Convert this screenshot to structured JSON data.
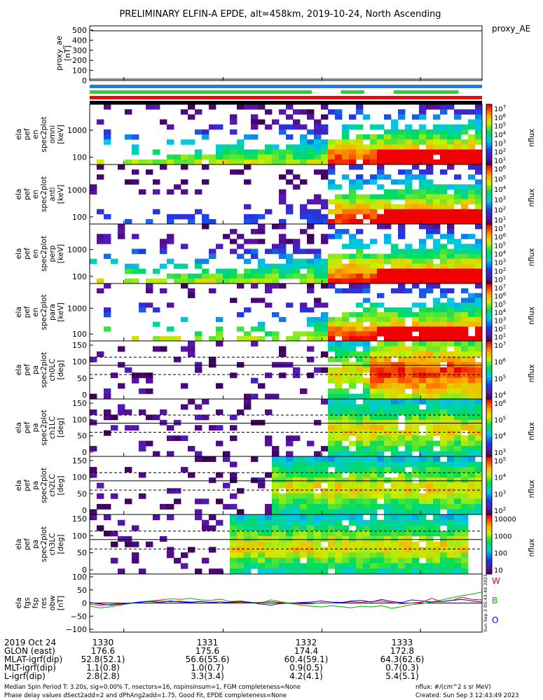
{
  "title": "PRELIMINARY ELFIN-A EPDE, alt=458km, 2019-10-24, North Ascending",
  "proxy_panel": {
    "ylabel_lines": [
      "proxy_ae",
      "[nT]"
    ],
    "right_label": "proxy_AE",
    "yticks": [
      "500",
      "400",
      "300",
      "200",
      "100",
      "0"
    ],
    "line_color": "#000000"
  },
  "flag_bars": {
    "colors": [
      "#1f7fe0",
      "#2ad62a",
      "#ff0000",
      "#000000"
    ]
  },
  "spectrogram_panels": [
    {
      "ylabel_lines": [
        "ela",
        "pef",
        "en",
        "spec2plot",
        "omni",
        "[keV]"
      ],
      "yticks": [
        "1000",
        "100"
      ],
      "cbar_ticks": [
        "10^7",
        "10^6",
        "10^5",
        "10^4",
        "10^3",
        "10^2",
        "10^1"
      ],
      "cbar_label": "nflux"
    },
    {
      "ylabel_lines": [
        "ela",
        "pef",
        "en",
        "spec2plot",
        "anti",
        "[keV]"
      ],
      "yticks": [
        "1000",
        "100"
      ],
      "cbar_ticks": [
        "10^6",
        "10^5",
        "10^4",
        "10^3",
        "10^2",
        "10^1"
      ],
      "cbar_label": "nflux"
    },
    {
      "ylabel_lines": [
        "ela",
        "pef",
        "en",
        "spec2plot",
        "perp",
        "[keV]"
      ],
      "yticks": [
        "1000",
        "100"
      ],
      "cbar_ticks": [
        "10^7",
        "10^6",
        "10^5",
        "10^4",
        "10^3",
        "10^2",
        "10^1"
      ],
      "cbar_label": "nflux"
    },
    {
      "ylabel_lines": [
        "ela",
        "pef",
        "en",
        "spec2plot",
        "para",
        "[keV]"
      ],
      "yticks": [
        "1000",
        "100"
      ],
      "cbar_ticks": [
        "10^7",
        "10^6",
        "10^5",
        "10^4",
        "10^3",
        "10^2",
        "10^1"
      ],
      "cbar_label": "nflux"
    },
    {
      "ylabel_lines": [
        "ela",
        "pef",
        "pa",
        "spec2plot",
        "ch0LC",
        "[deg]"
      ],
      "yticks": [
        "150",
        "100",
        "50",
        "0"
      ],
      "cbar_ticks": [
        "10^7",
        "10^6",
        "10^5",
        "10^4"
      ],
      "cbar_label": "nflux"
    },
    {
      "ylabel_lines": [
        "ela",
        "pef",
        "pa",
        "spec2plot",
        "ch1LC",
        "[deg]"
      ],
      "yticks": [
        "150",
        "100",
        "50",
        "0"
      ],
      "cbar_ticks": [
        "10^6",
        "10^5",
        "10^4",
        "10^3"
      ],
      "cbar_label": "nflux"
    },
    {
      "ylabel_lines": [
        "ela",
        "pef",
        "pa",
        "spec2plot",
        "ch2LC",
        "[deg]"
      ],
      "yticks": [
        "150",
        "100",
        "50",
        "0"
      ],
      "cbar_ticks": [
        "10^5",
        "10^4",
        "10^3",
        "10^2"
      ],
      "cbar_label": "nflux"
    },
    {
      "ylabel_lines": [
        "ela",
        "pef",
        "pa",
        "spec2plot",
        "ch3LC",
        "[deg]"
      ],
      "yticks": [
        "150",
        "100",
        "50",
        "0"
      ],
      "cbar_ticks": [
        "10000",
        "1000",
        "100",
        "10"
      ],
      "cbar_label": "nflux"
    }
  ],
  "field_panel": {
    "ylabel_lines": [
      "ela",
      "fgs",
      "fsp",
      "res",
      "obw",
      "[nT]"
    ],
    "yticks": [
      "100",
      "50",
      "0",
      "−50",
      "−100"
    ],
    "side_labels": [
      {
        "text": "W",
        "color": "#ff0000"
      },
      {
        "text": "B",
        "color": "#00b000"
      },
      {
        "text": "O",
        "color": "#0000ff"
      }
    ],
    "vertical_stamp": "Sun Sep  3 05:43:48 2023"
  },
  "chart_data": {
    "type": "line",
    "title": "PRELIMINARY ELFIN-A EPDE, alt=458km, 2019-10-24, North Ascending",
    "x_range_hhmm": [
      "13:29.5",
      "13:34.0"
    ],
    "proxy_ae": {
      "ylim": [
        0,
        500
      ],
      "value": 0
    },
    "field_ylim": [
      -100,
      100
    ],
    "series": [
      {
        "name": "W",
        "color": "#ff0000",
        "values": [
          -5,
          -8,
          -6,
          -2,
          0,
          4,
          6,
          8,
          5,
          7,
          4,
          6,
          3,
          5,
          2,
          4,
          1,
          3,
          6,
          2,
          0,
          -3,
          -2,
          1,
          0,
          2,
          5,
          3,
          6,
          8,
          2,
          -2,
          0,
          3,
          18,
          5,
          10,
          22,
          14,
          12
        ]
      },
      {
        "name": "B",
        "color": "#00b000",
        "values": [
          -12,
          -18,
          -15,
          -8,
          -2,
          5,
          8,
          12,
          16,
          14,
          18,
          12,
          10,
          15,
          6,
          8,
          3,
          0,
          12,
          5,
          -2,
          -8,
          -12,
          -15,
          -10,
          -14,
          -18,
          -12,
          -15,
          -10,
          -20,
          -14,
          -6,
          -2,
          4,
          12,
          20,
          28,
          34,
          42
        ]
      },
      {
        "name": "O",
        "color": "#0000ff",
        "values": [
          2,
          -3,
          -8,
          -5,
          0,
          3,
          6,
          2,
          8,
          4,
          2,
          6,
          3,
          0,
          4,
          6,
          2,
          -4,
          -8,
          -2,
          0,
          2,
          4,
          8,
          4,
          2,
          8,
          10,
          4,
          14,
          6,
          2,
          12,
          8,
          4,
          6,
          10,
          14,
          8,
          4
        ]
      }
    ]
  },
  "footer_table": {
    "rows": [
      {
        "label": "2019 Oct 24",
        "values": [
          "1330",
          "1331",
          "1332",
          "1333"
        ]
      },
      {
        "label": "GLON (east)",
        "values": [
          "176.6",
          "175.6",
          "174.4",
          "172.8"
        ]
      },
      {
        "label": "MLAT-igrf(dip)",
        "values": [
          "52.8(52.1)",
          "56.6(55.6)",
          "60.4(59.1)",
          "64.3(62.6)"
        ]
      },
      {
        "label": "MLT-igrf(dip)",
        "values": [
          "1.1(0.8)",
          "1.0(0.7)",
          "0.9(0.5)",
          "0.7(0.3)"
        ]
      },
      {
        "label": "L-igrf(dip)",
        "values": [
          "2.8(2.8)",
          "3.3(3.4)",
          "4.2(4.1)",
          "5.4(5.1)"
        ]
      }
    ]
  },
  "notes": {
    "left_line1": "Median Spin Period T: 3.20s, sig=0.00% T, nsectors=16, nspinsinsum=1, FGM completeness=None",
    "left_line2": "Phase delay values dSect2add=2 and dPhAng2add=1.75, Good Fit, EPDE completeness=None",
    "right_line1": "nflux: #/(cm^2 s sr MeV)",
    "right_line2": "Created: Sun Sep  3 12:43:49 2023"
  }
}
